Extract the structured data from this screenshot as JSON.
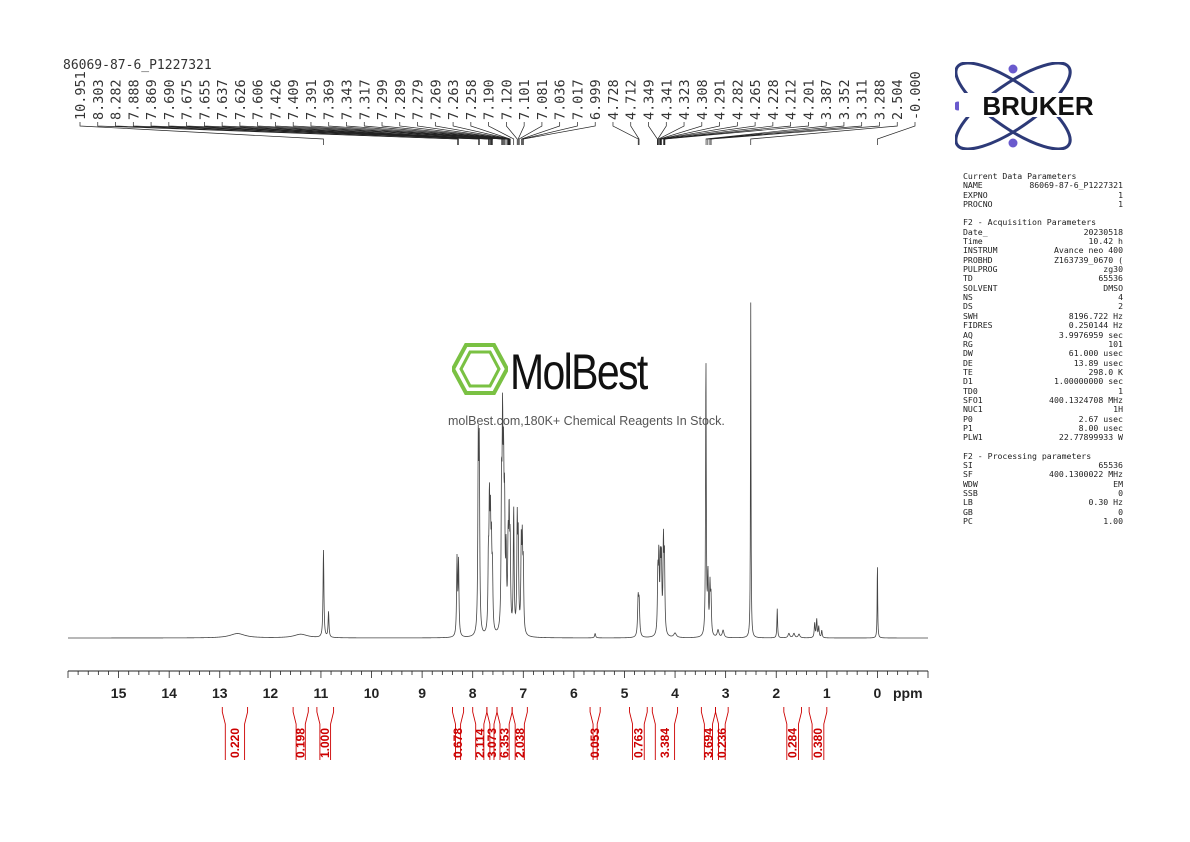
{
  "sample_name": "86069-87-6_P1227321",
  "brand": {
    "name": "BRUKER",
    "colors": {
      "ring": "#2d3a78",
      "dot": "#6a5acd",
      "text": "#111111"
    }
  },
  "watermark": {
    "name": "MolBest",
    "tagline": "molBest.com,180K+ Chemical Reagents In Stock.",
    "icon": "benzene-ring-icon",
    "colors": {
      "icon": "#7ac143",
      "text": "#111111"
    }
  },
  "parameters": [
    {
      "heading": "Current Data Parameters",
      "rows": [
        [
          "NAME",
          "86069-87-6_P1227321"
        ],
        [
          "EXPNO",
          "1"
        ],
        [
          "PROCNO",
          "1"
        ]
      ]
    },
    {
      "heading": "F2 - Acquisition Parameters",
      "rows": [
        [
          "Date_",
          "20230518"
        ],
        [
          "Time",
          "10.42 h"
        ],
        [
          "INSTRUM",
          "Avance neo 400"
        ],
        [
          "PROBHD",
          "Z163739_0670 ("
        ],
        [
          "PULPROG",
          "zg30"
        ],
        [
          "TD",
          "65536"
        ],
        [
          "SOLVENT",
          "DMSO"
        ],
        [
          "NS",
          "4"
        ],
        [
          "DS",
          "2"
        ],
        [
          "SWH",
          "8196.722 Hz"
        ],
        [
          "FIDRES",
          "0.250144 Hz"
        ],
        [
          "AQ",
          "3.9976959 sec"
        ],
        [
          "RG",
          "101"
        ],
        [
          "DW",
          "61.000 usec"
        ],
        [
          "DE",
          "13.89 usec"
        ],
        [
          "TE",
          "298.0 K"
        ],
        [
          "D1",
          "1.00000000 sec"
        ],
        [
          "TD0",
          "1"
        ],
        [
          "SFO1",
          "400.1324708 MHz"
        ],
        [
          "NUC1",
          "1H"
        ],
        [
          "P0",
          "2.67 usec"
        ],
        [
          "P1",
          "8.00 usec"
        ],
        [
          "PLW1",
          "22.77899933 W"
        ]
      ]
    },
    {
      "heading": "F2 - Processing parameters",
      "rows": [
        [
          "SI",
          "65536"
        ],
        [
          "SF",
          "400.1300022 MHz"
        ],
        [
          "WDW",
          "EM"
        ],
        [
          "SSB",
          "0"
        ],
        [
          "LB",
          "0.30 Hz"
        ],
        [
          "GB",
          "0"
        ],
        [
          "PC",
          "1.00"
        ]
      ]
    }
  ],
  "chart_data": {
    "type": "line",
    "title": "",
    "xlabel": "ppm",
    "ylabel": "",
    "xlim": [
      16,
      -1
    ],
    "x_reversed": true,
    "x_ticks": [
      15,
      14,
      13,
      12,
      11,
      10,
      9,
      8,
      7,
      6,
      5,
      4,
      3,
      2,
      1,
      0
    ],
    "grid": false,
    "line_color": "#444444",
    "integral_color": "#cc0000",
    "peaks": [
      {
        "ppm": 12.65,
        "height": 0.012,
        "width": 0.18
      },
      {
        "ppm": 11.4,
        "height": 0.01,
        "width": 0.16
      },
      {
        "ppm": 10.95,
        "height": 0.24,
        "width": 0.01
      },
      {
        "ppm": 10.85,
        "height": 0.07,
        "width": 0.01
      },
      {
        "ppm": 8.31,
        "height": 0.21,
        "width": 0.01
      },
      {
        "ppm": 8.28,
        "height": 0.2,
        "width": 0.01
      },
      {
        "ppm": 7.89,
        "height": 0.49,
        "width": 0.01
      },
      {
        "ppm": 7.87,
        "height": 0.47,
        "width": 0.01
      },
      {
        "ppm": 7.69,
        "height": 0.18,
        "width": 0.01
      },
      {
        "ppm": 7.67,
        "height": 0.32,
        "width": 0.01
      },
      {
        "ppm": 7.65,
        "height": 0.27,
        "width": 0.01
      },
      {
        "ppm": 7.63,
        "height": 0.21,
        "width": 0.01
      },
      {
        "ppm": 7.61,
        "height": 0.16,
        "width": 0.01
      },
      {
        "ppm": 7.43,
        "height": 0.36,
        "width": 0.01
      },
      {
        "ppm": 7.41,
        "height": 0.5,
        "width": 0.01
      },
      {
        "ppm": 7.39,
        "height": 0.38,
        "width": 0.01
      },
      {
        "ppm": 7.37,
        "height": 0.3,
        "width": 0.01
      },
      {
        "ppm": 7.34,
        "height": 0.2,
        "width": 0.01
      },
      {
        "ppm": 7.3,
        "height": 0.22,
        "width": 0.01
      },
      {
        "ppm": 7.28,
        "height": 0.28,
        "width": 0.01
      },
      {
        "ppm": 7.26,
        "height": 0.22,
        "width": 0.01
      },
      {
        "ppm": 7.19,
        "height": 0.34,
        "width": 0.01
      },
      {
        "ppm": 7.12,
        "height": 0.29,
        "width": 0.01
      },
      {
        "ppm": 7.1,
        "height": 0.24,
        "width": 0.01
      },
      {
        "ppm": 7.04,
        "height": 0.23,
        "width": 0.01
      },
      {
        "ppm": 7.02,
        "height": 0.22,
        "width": 0.01
      },
      {
        "ppm": 7.0,
        "height": 0.17,
        "width": 0.01
      },
      {
        "ppm": 5.58,
        "height": 0.012,
        "width": 0.012
      },
      {
        "ppm": 4.73,
        "height": 0.1,
        "width": 0.012
      },
      {
        "ppm": 4.71,
        "height": 0.09,
        "width": 0.012
      },
      {
        "ppm": 4.34,
        "height": 0.16,
        "width": 0.01
      },
      {
        "ppm": 4.32,
        "height": 0.2,
        "width": 0.01
      },
      {
        "ppm": 4.29,
        "height": 0.18,
        "width": 0.01
      },
      {
        "ppm": 4.27,
        "height": 0.19,
        "width": 0.01
      },
      {
        "ppm": 4.23,
        "height": 0.24,
        "width": 0.01
      },
      {
        "ppm": 4.21,
        "height": 0.2,
        "width": 0.01
      },
      {
        "ppm": 4.0,
        "height": 0.012,
        "width": 0.03
      },
      {
        "ppm": 3.39,
        "height": 0.77,
        "width": 0.008
      },
      {
        "ppm": 3.35,
        "height": 0.16,
        "width": 0.01
      },
      {
        "ppm": 3.31,
        "height": 0.13,
        "width": 0.01
      },
      {
        "ppm": 3.29,
        "height": 0.1,
        "width": 0.01
      },
      {
        "ppm": 3.15,
        "height": 0.02,
        "width": 0.02
      },
      {
        "ppm": 3.05,
        "height": 0.02,
        "width": 0.02
      },
      {
        "ppm": 2.504,
        "height": 0.92,
        "width": 0.006
      },
      {
        "ppm": 1.98,
        "height": 0.08,
        "width": 0.008
      },
      {
        "ppm": 1.75,
        "height": 0.012,
        "width": 0.02
      },
      {
        "ppm": 1.65,
        "height": 0.012,
        "width": 0.02
      },
      {
        "ppm": 1.55,
        "height": 0.01,
        "width": 0.02
      },
      {
        "ppm": 1.24,
        "height": 0.04,
        "width": 0.01
      },
      {
        "ppm": 1.2,
        "height": 0.05,
        "width": 0.01
      },
      {
        "ppm": 1.16,
        "height": 0.03,
        "width": 0.01
      },
      {
        "ppm": 1.1,
        "height": 0.02,
        "width": 0.01
      },
      {
        "ppm": 0.0,
        "height": 0.21,
        "width": 0.006
      }
    ],
    "peak_labels": [
      "10.951",
      "8.303",
      "8.282",
      "7.888",
      "7.869",
      "7.690",
      "7.675",
      "7.655",
      "7.637",
      "7.626",
      "7.606",
      "7.426",
      "7.409",
      "7.391",
      "7.369",
      "7.343",
      "7.317",
      "7.299",
      "7.289",
      "7.279",
      "7.269",
      "7.263",
      "7.258",
      "7.190",
      "7.120",
      "7.101",
      "7.081",
      "7.036",
      "7.017",
      "6.999",
      "4.728",
      "4.712",
      "4.349",
      "4.341",
      "4.323",
      "4.308",
      "4.291",
      "4.282",
      "4.265",
      "4.228",
      "4.212",
      "4.201",
      "3.387",
      "3.352",
      "3.311",
      "3.288",
      "2.504",
      "-0.000"
    ],
    "integrals": [
      {
        "from": 12.95,
        "to": 12.45,
        "value": "0.220"
      },
      {
        "from": 11.55,
        "to": 11.25,
        "value": "0.198"
      },
      {
        "from": 11.08,
        "to": 10.75,
        "value": "1.000"
      },
      {
        "from": 8.4,
        "to": 8.18,
        "value": "0.678"
      },
      {
        "from": 8.0,
        "to": 7.72,
        "value": "2.114"
      },
      {
        "from": 7.72,
        "to": 7.52,
        "value": "3.073"
      },
      {
        "from": 7.52,
        "to": 7.22,
        "value": "6.353"
      },
      {
        "from": 7.22,
        "to": 6.92,
        "value": "2.038"
      },
      {
        "from": 5.68,
        "to": 5.48,
        "value": "0.053"
      },
      {
        "from": 4.9,
        "to": 4.55,
        "value": "0.763"
      },
      {
        "from": 4.45,
        "to": 3.95,
        "value": "3.384"
      },
      {
        "from": 3.48,
        "to": 3.2,
        "value": "3.694"
      },
      {
        "from": 3.2,
        "to": 2.95,
        "value": "0.236"
      },
      {
        "from": 1.85,
        "to": 1.5,
        "value": "0.284"
      },
      {
        "from": 1.35,
        "to": 1.0,
        "value": "0.380"
      }
    ]
  }
}
